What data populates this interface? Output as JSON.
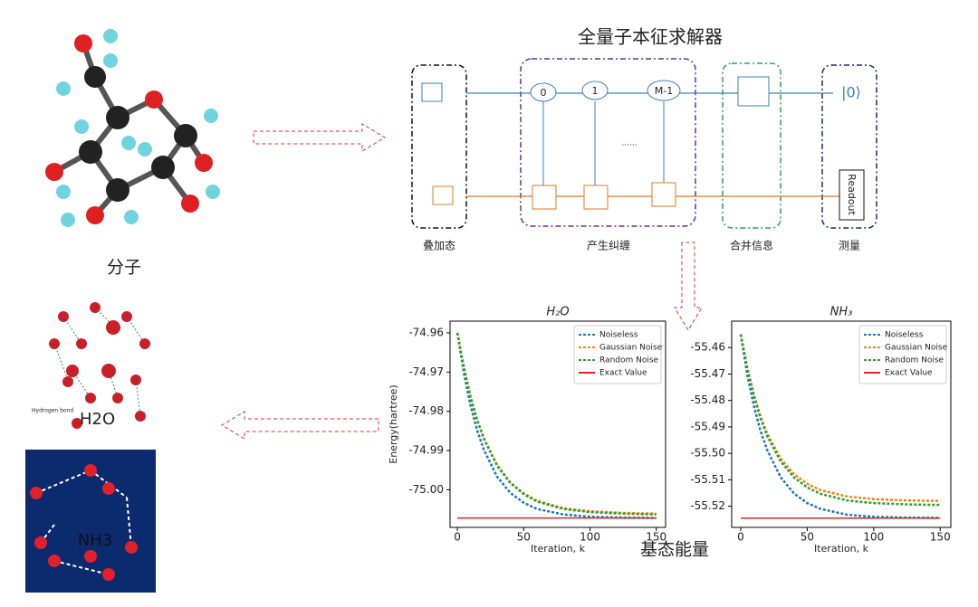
{
  "diagram": {
    "title": "全量子本征求解器",
    "stages": [
      "叠加态",
      "产生纠缠",
      "合并信息",
      "测量"
    ],
    "gates": [
      "0",
      "1",
      "M-1"
    ],
    "ellipsis": "......",
    "readout": "Readout",
    "output_state": "|0⟩",
    "molecule_caption": "分子",
    "h2o_label": "H2O",
    "hydrogen_bond": "Hydrogen bond",
    "nh3_label": "NH3",
    "energy_caption": "基态能量"
  },
  "chart_data": [
    {
      "type": "line",
      "title": "H₂O",
      "y_label": "Energy(hartree)",
      "x_label": "Iteration, k",
      "x": [
        0,
        5,
        10,
        15,
        20,
        30,
        40,
        50,
        60,
        80,
        100,
        125,
        150
      ],
      "xlim": [
        -5.5,
        157
      ],
      "xticks": [
        0,
        50,
        100,
        150
      ],
      "ylim": [
        -75.0096,
        -74.957
      ],
      "yticks": [
        -74.96,
        -74.97,
        -74.98,
        -74.99,
        {
          "value": -75,
          "label": "-75.00"
        }
      ],
      "legend": "upper right",
      "series": [
        {
          "name": "Noiseless",
          "color": "#1f77b4",
          "linestyle": "dashed",
          "values": [
            -74.96,
            -74.9704,
            -74.9786,
            -74.9849,
            -74.9898,
            -74.9967,
            -75.0008,
            -75.0033,
            -75.0049,
            -75.0063,
            -75.0069,
            -75.0071,
            -75.0072
          ]
        },
        {
          "name": "Gaussian Noise",
          "color": "#ff7f0e",
          "linestyle": "dashed",
          "values": [
            -74.96,
            -74.969,
            -74.9763,
            -74.9821,
            -74.9868,
            -74.9937,
            -74.9981,
            -75.0009,
            -75.0028,
            -75.0047,
            -75.0055,
            -75.0059,
            -75.0061
          ]
        },
        {
          "name": "Random Noise",
          "color": "#2ca02c",
          "linestyle": "dashed",
          "values": [
            -74.96,
            -74.9691,
            -74.9765,
            -74.9823,
            -74.987,
            -74.9939,
            -74.9983,
            -75.0011,
            -75.003,
            -75.0049,
            -75.0057,
            -75.0061,
            -75.0063
          ]
        },
        {
          "name": "Exact Value",
          "color": "#d62728",
          "linestyle": "solid",
          "values": [
            -75.0072,
            -75.0072,
            -75.0072,
            -75.0072,
            -75.0072,
            -75.0072,
            -75.0072,
            -75.0072,
            -75.0072,
            -75.0072,
            -75.0072,
            -75.0072,
            -75.0072
          ]
        }
      ]
    },
    {
      "type": "line",
      "title": "NH₃",
      "x_label": "Iteration, k",
      "x": [
        0,
        5,
        10,
        15,
        20,
        30,
        40,
        50,
        60,
        80,
        100,
        125,
        150
      ],
      "xlim": [
        -6.8,
        158
      ],
      "xticks": [
        0,
        50,
        100,
        150
      ],
      "ylim": [
        -55.528,
        -55.45
      ],
      "yticks": [
        -55.46,
        -55.47,
        -55.48,
        -55.49,
        {
          "value": -55.5,
          "label": "-55.50"
        },
        -55.51,
        -55.52
      ],
      "legend": "upper right",
      "series": [
        {
          "name": "Noiseless",
          "color": "#1f77b4",
          "linestyle": "dashed",
          "values": [
            -55.455,
            -55.4704,
            -55.4824,
            -55.4917,
            -55.4989,
            -55.509,
            -55.5151,
            -55.5188,
            -55.521,
            -55.5232,
            -55.524,
            -55.5243,
            -55.5244
          ]
        },
        {
          "name": "Gaussian Noise",
          "color": "#ff7f0e",
          "linestyle": "dashed",
          "values": [
            -55.455,
            -55.4678,
            -55.478,
            -55.4861,
            -55.4926,
            -55.5019,
            -55.5078,
            -55.5115,
            -55.5139,
            -55.5163,
            -55.5173,
            -55.5178,
            -55.518
          ]
        },
        {
          "name": "Random Noise",
          "color": "#2ca02c",
          "linestyle": "dashed",
          "values": [
            -55.455,
            -55.4681,
            -55.4785,
            -55.4869,
            -55.4935,
            -55.503,
            -55.509,
            -55.5129,
            -55.5153,
            -55.5178,
            -55.5188,
            -55.5193,
            -55.5195
          ]
        },
        {
          "name": "Exact Value",
          "color": "#d62728",
          "linestyle": "solid",
          "values": [
            -55.5245,
            -55.5245,
            -55.5245,
            -55.5245,
            -55.5245,
            -55.5245,
            -55.5245,
            -55.5245,
            -55.5245,
            -55.5245,
            -55.5245,
            -55.5245,
            -55.5245
          ]
        }
      ]
    }
  ]
}
